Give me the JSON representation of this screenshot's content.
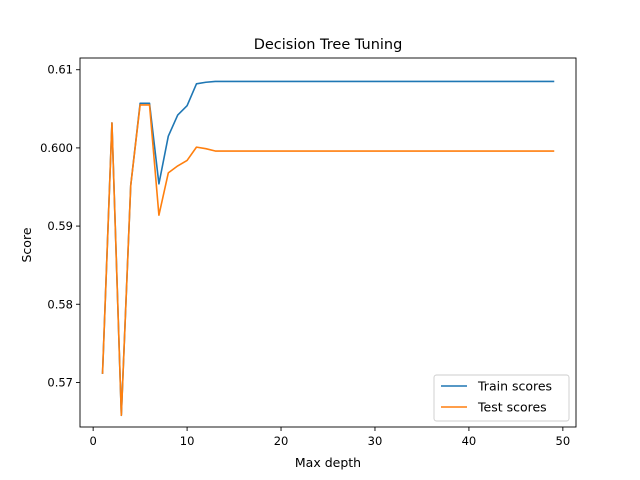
{
  "chart_data": {
    "type": "line",
    "title": "Decision Tree Tuning",
    "xlabel": "Max depth",
    "ylabel": "Score",
    "xlim": [
      -1.4,
      51.4
    ],
    "ylim": [
      0.5643,
      0.6115
    ],
    "xticks": [
      0,
      10,
      20,
      30,
      40,
      50
    ],
    "yticks": [
      0.57,
      0.58,
      0.59,
      0.6,
      0.61
    ],
    "ytick_labels": [
      "0.57",
      "0.58",
      "0.59",
      "0.600",
      "0.61"
    ],
    "grid": false,
    "legend_position": "lower-right",
    "x": [
      1,
      2,
      3,
      4,
      5,
      6,
      7,
      8,
      9,
      10,
      11,
      12,
      13,
      14,
      15,
      16,
      17,
      18,
      19,
      20,
      21,
      22,
      23,
      24,
      25,
      26,
      27,
      28,
      29,
      30,
      31,
      32,
      33,
      34,
      35,
      36,
      37,
      38,
      39,
      40,
      41,
      42,
      43,
      44,
      45,
      46,
      47,
      48,
      49
    ],
    "series": [
      {
        "name": "Train scores",
        "color": "#1f77b4",
        "values": [
          0.5712,
          0.6032,
          0.5658,
          0.5952,
          0.6057,
          0.6057,
          0.5954,
          0.6015,
          0.6042,
          0.6054,
          0.6082,
          0.6084,
          0.6085,
          0.6085,
          0.6085,
          0.6085,
          0.6085,
          0.6085,
          0.6085,
          0.6085,
          0.6085,
          0.6085,
          0.6085,
          0.6085,
          0.6085,
          0.6085,
          0.6085,
          0.6085,
          0.6085,
          0.6085,
          0.6085,
          0.6085,
          0.6085,
          0.6085,
          0.6085,
          0.6085,
          0.6085,
          0.6085,
          0.6085,
          0.6085,
          0.6085,
          0.6085,
          0.6085,
          0.6085,
          0.6085,
          0.6085,
          0.6085,
          0.6085,
          0.6085
        ]
      },
      {
        "name": "Test scores",
        "color": "#ff7f0e",
        "values": [
          0.5712,
          0.6032,
          0.5658,
          0.5952,
          0.6055,
          0.6055,
          0.5914,
          0.5968,
          0.5977,
          0.5984,
          0.6001,
          0.5999,
          0.5996,
          0.5996,
          0.5996,
          0.5996,
          0.5996,
          0.5996,
          0.5996,
          0.5996,
          0.5996,
          0.5996,
          0.5996,
          0.5996,
          0.5996,
          0.5996,
          0.5996,
          0.5996,
          0.5996,
          0.5996,
          0.5996,
          0.5996,
          0.5996,
          0.5996,
          0.5996,
          0.5996,
          0.5996,
          0.5996,
          0.5996,
          0.5996,
          0.5996,
          0.5996,
          0.5996,
          0.5996,
          0.5996,
          0.5996,
          0.5996,
          0.5996,
          0.5996
        ]
      }
    ]
  }
}
